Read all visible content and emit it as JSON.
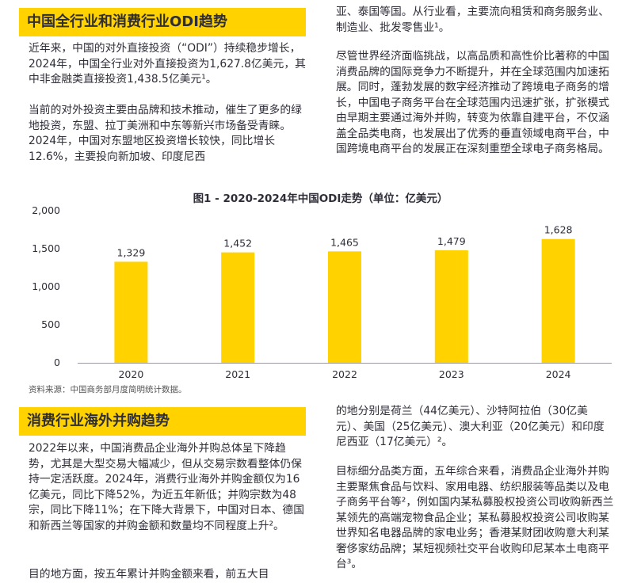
{
  "colors": {
    "accent": "#ffd200",
    "text": "#2e2e38"
  },
  "section1": {
    "heading": "中国全行业和消费行业ODI趋势",
    "p1": "近年来，中国的对外直接投资（“ODI”）持续稳步增长，2024年，中国全行业对外直接投资为1,627.8亿美元，其中非金融类直接投资1,438.5亿美元¹。",
    "p2": "当前的对外投资主要由品牌和技术推动，催生了更多的绿地投资，东盟、拉丁美洲和中东等新兴市场备受青睐。2024年，中国对东盟地区投资增长较快，同比增长12.6%，主要投向新加坡、印度尼西"
  },
  "right_top": {
    "p1": "亚、泰国等国。从行业看，主要流向租赁和商务服务业、制造业、批发零售业¹。",
    "p2": "尽管世界经济面临挑战，以高品质和高性价比著称的中国消费品牌的国际竞争力不断提升，并在全球范围内加速拓展。同时，蓬勃发展的数字经济推动了跨境电子商务的增长，中国电子商务平台在全球范围内迅速扩张，扩张模式由早期主要通过海外并购，转变为依靠自建平台，不仅涵盖全品类电商，也发展出了优秀的垂直领域电商平台，中国跨境电商平台的发展正在深刻重塑全球电子商务格局。"
  },
  "chart_data": {
    "type": "bar",
    "title": "图1 - 2020-2024年中国ODI走势（单位：亿美元）",
    "categories": [
      "2020",
      "2021",
      "2022",
      "2023",
      "2024"
    ],
    "values": [
      1329,
      1452,
      1465,
      1479,
      1628
    ],
    "value_labels": [
      "1,329",
      "1,452",
      "1,465",
      "1,479",
      "1,628"
    ],
    "yticks": [
      "0",
      "500",
      "1,000",
      "1,500",
      "2,000"
    ],
    "ylim": [
      0,
      2000
    ],
    "grid": false,
    "legend": "none",
    "bar_color": "#ffd200",
    "source": "资料来源：中国商务部月度简明统计数据。"
  },
  "section2": {
    "heading": "消费行业海外并购趋势",
    "p1": "2022年以来，中国消费品企业海外并购总体呈下降趋势，尤其是大型交易大幅减少，但从交易宗数看整体仍保持一定活跃度。2024年，消费行业海外并购金额仅为16亿美元，同比下降52%，为近五年新低；并购宗数为48宗，同比下降11%；在下降大背景下，中国对日本、德国和新西兰等国家的并购金额和数量均不同程度上升²。",
    "p2": "目的地方面，按五年累计并购金额来看，前五大目"
  },
  "right_bottom": {
    "p1": "的地分别是荷兰（44亿美元）、沙特阿拉伯（30亿美元）、美国（25亿美元）、澳大利亚（20亿美元）和印度尼西亚（17亿美元）²。",
    "p2": "目标细分品类方面，五年综合来看，消费品企业海外并购主要聚焦食品与饮料、家用电器、纺织服装等品类以及电子商务平台等²，例如国内某私募股权投资公司收购新西兰某领先的高端宠物食品企业；某私募股权投资公司收购某世界知名电器品牌的家电业务；香港某财团收购意大利某奢侈家纺品牌；某短视频社交平台收购印尼某本土电商平台³。"
  }
}
